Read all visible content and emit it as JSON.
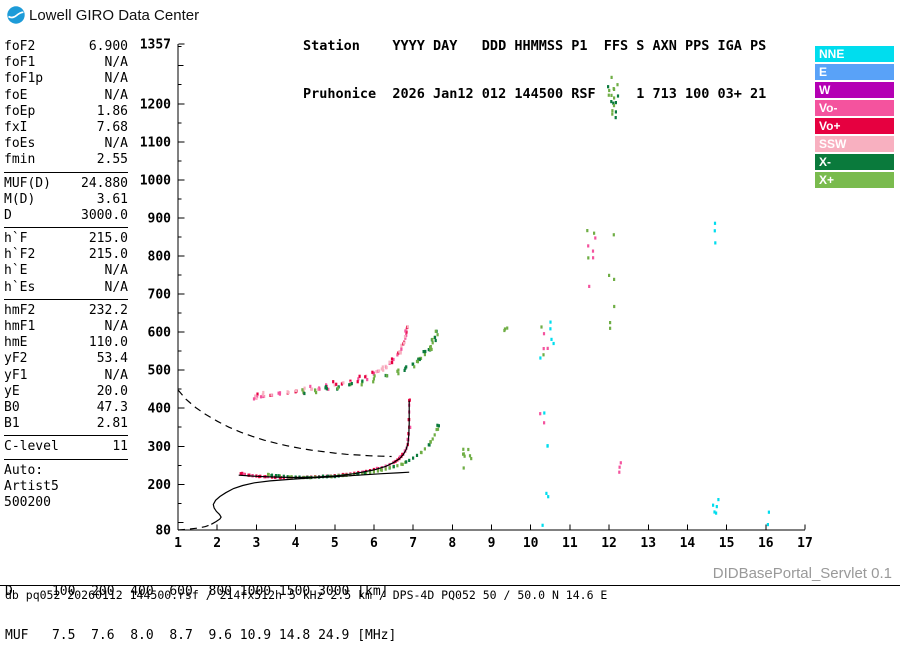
{
  "header": {
    "brand": "Lowell GIRO Data Center",
    "station_line1": "Station    YYYY DAY   DDD HHMMSS P1  FFS S AXN PPS IGA PS",
    "station_line2": "Pruhonice  2026 Jan12 012 144500 RSF     1 713 100 03+ 21"
  },
  "params": {
    "groups": [
      {
        "rows": [
          [
            "foF2",
            "6.900"
          ],
          [
            "foF1",
            "N/A"
          ],
          [
            "foF1p",
            "N/A"
          ],
          [
            "foE",
            "N/A"
          ],
          [
            "foEp",
            "1.86"
          ],
          [
            "fxI",
            "7.68"
          ],
          [
            "foEs",
            "N/A"
          ],
          [
            "fmin",
            "2.55"
          ]
        ]
      },
      {
        "rows": [
          [
            "MUF(D)",
            "24.880"
          ],
          [
            "M(D)",
            "3.61"
          ],
          [
            "D",
            "3000.0"
          ]
        ]
      },
      {
        "rows": [
          [
            "h`F",
            "215.0"
          ],
          [
            "h`F2",
            "215.0"
          ],
          [
            "h`E",
            "N/A"
          ],
          [
            "h`Es",
            "N/A"
          ]
        ]
      },
      {
        "rows": [
          [
            "hmF2",
            "232.2"
          ],
          [
            "hmF1",
            "N/A"
          ],
          [
            "hmE",
            "110.0"
          ],
          [
            "yF2",
            "53.4"
          ],
          [
            "yF1",
            "N/A"
          ],
          [
            "yE",
            "20.0"
          ],
          [
            "B0",
            "47.3"
          ],
          [
            "B1",
            "2.81"
          ]
        ]
      },
      {
        "rows": [
          [
            "C-level",
            "11"
          ]
        ]
      }
    ],
    "auto": {
      "lines": [
        "Auto:",
        "Artist5",
        "500200"
      ]
    }
  },
  "legend": [
    {
      "key": "nne",
      "label": "NNE",
      "color": "#00DDEE"
    },
    {
      "key": "e",
      "label": "E",
      "color": "#59A2F8"
    },
    {
      "key": "w",
      "label": "W",
      "color": "#B400B4"
    },
    {
      "key": "vo-minus",
      "label": "Vo-",
      "color": "#F4539E"
    },
    {
      "key": "vo-plus",
      "label": "Vo+",
      "color": "#E60040"
    },
    {
      "key": "ssw",
      "label": "SSW",
      "color": "#F8B0C0"
    },
    {
      "key": "x-minus",
      "label": "X-",
      "color": "#0A7A3C"
    },
    {
      "key": "x-plus",
      "label": "X+",
      "color": "#7ABB4E"
    }
  ],
  "muf_table": {
    "line1": "D     100  200  400  600  800 1000 1500 3000 [km]",
    "line2": "MUF   7.5  7.6  8.0  8.7  9.6 10.9 14.8 24.9 [MHz]"
  },
  "footer": {
    "servlet": "DIDBasePortal_Servlet 0.1",
    "info": "db pq052 20260112 144500.rsf / 214fx512h 5 kHz 2.5 km / DPS-4D PQ052 50 / 50.0 N 14.6 E"
  },
  "chart_data": {
    "type": "scatter",
    "xlabel": "[MHz]",
    "ylabel": "[km]",
    "x_range": [
      1,
      17
    ],
    "y_range": [
      80,
      1357
    ],
    "x_ticks": [
      1,
      2,
      3,
      4,
      5,
      6,
      7,
      8,
      9,
      10,
      11,
      12,
      13,
      14,
      15,
      16,
      17
    ],
    "y_ticks": [
      1357,
      1200,
      1100,
      1000,
      900,
      800,
      700,
      600,
      500,
      400,
      300,
      200,
      80
    ],
    "grid": false,
    "legend_position": "right",
    "seed": 7,
    "palette": {
      "voplus": "#E60040",
      "vominus": "#F4539E",
      "ssw": "#F8B0C0",
      "xplus": "#6FAE45",
      "xminus": "#0A7A3C",
      "cyan": "#00DDEE",
      "e": "#59A2F8",
      "w": "#B400B4"
    },
    "series": [
      {
        "name": "f2-o-trace",
        "colors": [
          "voplus",
          "voplus",
          "vominus"
        ],
        "spread": 1.5,
        "points": [
          [
            2.6,
            228
          ],
          [
            2.7,
            226
          ],
          [
            2.8,
            224
          ],
          [
            2.9,
            223
          ],
          [
            3.0,
            222
          ],
          [
            3.1,
            221
          ],
          [
            3.2,
            220
          ],
          [
            3.3,
            220
          ],
          [
            3.4,
            219
          ],
          [
            3.5,
            219
          ],
          [
            3.6,
            218
          ],
          [
            3.7,
            218
          ],
          [
            3.8,
            218
          ],
          [
            3.9,
            218
          ],
          [
            4.0,
            218
          ],
          [
            4.1,
            218
          ],
          [
            4.2,
            218
          ],
          [
            4.3,
            219
          ],
          [
            4.4,
            219
          ],
          [
            4.5,
            220
          ],
          [
            4.6,
            220
          ],
          [
            4.7,
            221
          ],
          [
            4.8,
            222
          ],
          [
            4.9,
            222
          ],
          [
            5.0,
            223
          ],
          [
            5.1,
            224
          ],
          [
            5.2,
            225
          ],
          [
            5.3,
            226
          ],
          [
            5.4,
            228
          ],
          [
            5.5,
            229
          ],
          [
            5.6,
            231
          ],
          [
            5.7,
            232
          ],
          [
            5.8,
            234
          ],
          [
            5.9,
            236
          ],
          [
            6.0,
            239
          ],
          [
            6.1,
            241
          ],
          [
            6.2,
            244
          ],
          [
            6.3,
            248
          ],
          [
            6.4,
            252
          ],
          [
            6.5,
            257
          ],
          [
            6.55,
            260
          ],
          [
            6.6,
            264
          ],
          [
            6.65,
            268
          ],
          [
            6.7,
            273
          ],
          [
            6.75,
            279
          ],
          [
            6.8,
            287
          ],
          [
            6.83,
            295
          ],
          [
            6.86,
            305
          ],
          [
            6.88,
            317
          ],
          [
            6.89,
            332
          ],
          [
            6.9,
            350
          ],
          [
            6.9,
            370
          ],
          [
            6.9,
            390
          ],
          [
            6.9,
            408
          ],
          [
            6.9,
            420
          ]
        ]
      },
      {
        "name": "f2-x-trace",
        "colors": [
          "xplus",
          "xplus",
          "xminus"
        ],
        "spread": 1.5,
        "points": [
          [
            3.3,
            226
          ],
          [
            3.4,
            224
          ],
          [
            3.5,
            223
          ],
          [
            3.6,
            222
          ],
          [
            3.7,
            221
          ],
          [
            3.8,
            220
          ],
          [
            3.9,
            220
          ],
          [
            4.0,
            219
          ],
          [
            4.1,
            219
          ],
          [
            4.2,
            218
          ],
          [
            4.3,
            218
          ],
          [
            4.4,
            218
          ],
          [
            4.5,
            219
          ],
          [
            4.6,
            219
          ],
          [
            4.7,
            220
          ],
          [
            4.8,
            220
          ],
          [
            4.9,
            221
          ],
          [
            5.0,
            221
          ],
          [
            5.1,
            222
          ],
          [
            5.2,
            223
          ],
          [
            5.3,
            224
          ],
          [
            5.4,
            225
          ],
          [
            5.5,
            226
          ],
          [
            5.6,
            227
          ],
          [
            5.7,
            228
          ],
          [
            5.8,
            230
          ],
          [
            5.9,
            231
          ],
          [
            6.0,
            233
          ],
          [
            6.1,
            235
          ],
          [
            6.2,
            237
          ],
          [
            6.3,
            240
          ],
          [
            6.4,
            243
          ],
          [
            6.5,
            246
          ],
          [
            6.6,
            249
          ],
          [
            6.7,
            253
          ],
          [
            6.8,
            258
          ],
          [
            6.9,
            263
          ],
          [
            7.0,
            269
          ],
          [
            7.1,
            276
          ],
          [
            7.2,
            284
          ],
          [
            7.3,
            293
          ],
          [
            7.4,
            304
          ],
          [
            7.45,
            311
          ],
          [
            7.5,
            319
          ],
          [
            7.55,
            330
          ],
          [
            7.6,
            344
          ],
          [
            7.62,
            355
          ]
        ]
      },
      {
        "name": "second-hop-o",
        "colors": [
          "vominus",
          "voplus",
          "ssw"
        ],
        "spread": 9,
        "points": [
          [
            3.0,
            428
          ],
          [
            3.2,
            431
          ],
          [
            3.4,
            434
          ],
          [
            3.6,
            437
          ],
          [
            3.8,
            440
          ],
          [
            4.0,
            443
          ],
          [
            4.2,
            446
          ],
          [
            4.4,
            450
          ],
          [
            4.6,
            453
          ],
          [
            4.8,
            457
          ],
          [
            5.0,
            461
          ],
          [
            5.2,
            466
          ],
          [
            5.4,
            471
          ],
          [
            5.6,
            477
          ],
          [
            5.8,
            484
          ],
          [
            6.0,
            492
          ],
          [
            6.1,
            497
          ],
          [
            6.2,
            503
          ],
          [
            6.3,
            510
          ],
          [
            6.4,
            518
          ],
          [
            6.5,
            528
          ],
          [
            6.6,
            540
          ],
          [
            6.65,
            548
          ],
          [
            6.7,
            557
          ],
          [
            6.75,
            569
          ],
          [
            6.8,
            584
          ],
          [
            6.83,
            600
          ],
          [
            6.85,
            612
          ]
        ]
      },
      {
        "name": "second-hop-x",
        "colors": [
          "xplus",
          "xminus"
        ],
        "spread": 9,
        "points": [
          [
            4.2,
            442
          ],
          [
            4.5,
            446
          ],
          [
            4.8,
            451
          ],
          [
            5.1,
            456
          ],
          [
            5.4,
            462
          ],
          [
            5.7,
            469
          ],
          [
            6.0,
            477
          ],
          [
            6.3,
            486
          ],
          [
            6.6,
            497
          ],
          [
            6.8,
            505
          ],
          [
            7.0,
            516
          ],
          [
            7.1,
            523
          ],
          [
            7.2,
            531
          ],
          [
            7.3,
            541
          ],
          [
            7.4,
            554
          ],
          [
            7.45,
            562
          ],
          [
            7.5,
            572
          ],
          [
            7.55,
            586
          ],
          [
            7.6,
            602
          ]
        ]
      }
    ],
    "noise_clusters": [
      {
        "f0": 10.2,
        "f1": 10.5,
        "h0": 90,
        "h1": 620,
        "n": 14,
        "colors": [
          "cyan",
          "xplus",
          "vominus"
        ]
      },
      {
        "f0": 10.5,
        "f1": 10.65,
        "h0": 560,
        "h1": 650,
        "n": 4,
        "colors": [
          "cyan"
        ]
      },
      {
        "f0": 11.4,
        "f1": 11.65,
        "h0": 720,
        "h1": 880,
        "n": 8,
        "colors": [
          "xplus",
          "vominus"
        ]
      },
      {
        "f0": 11.95,
        "f1": 12.25,
        "h0": 1160,
        "h1": 1270,
        "n": 18,
        "colors": [
          "xplus",
          "xminus"
        ]
      },
      {
        "f0": 12.0,
        "f1": 12.2,
        "h0": 590,
        "h1": 860,
        "n": 6,
        "colors": [
          "xplus"
        ]
      },
      {
        "f0": 12.15,
        "f1": 12.3,
        "h0": 230,
        "h1": 265,
        "n": 3,
        "colors": [
          "vominus"
        ]
      },
      {
        "f0": 14.6,
        "f1": 14.8,
        "h0": 90,
        "h1": 170,
        "n": 5,
        "colors": [
          "cyan"
        ]
      },
      {
        "f0": 14.62,
        "f1": 14.78,
        "h0": 830,
        "h1": 890,
        "n": 3,
        "colors": [
          "cyan"
        ]
      },
      {
        "f0": 8.1,
        "f1": 8.5,
        "h0": 230,
        "h1": 310,
        "n": 8,
        "colors": [
          "xplus"
        ]
      },
      {
        "f0": 2.9,
        "f1": 3.3,
        "h0": 412,
        "h1": 445,
        "n": 6,
        "colors": [
          "vominus",
          "ssw"
        ]
      },
      {
        "f0": 9.2,
        "f1": 9.45,
        "h0": 595,
        "h1": 645,
        "n": 3,
        "colors": [
          "xplus"
        ]
      },
      {
        "f0": 15.9,
        "f1": 16.1,
        "h0": 90,
        "h1": 130,
        "n": 2,
        "colors": [
          "cyan"
        ]
      }
    ],
    "lines": [
      {
        "name": "artist-o-fit",
        "style": "solid",
        "points": [
          [
            2.55,
            224
          ],
          [
            3.0,
            221
          ],
          [
            3.5,
            219
          ],
          [
            4.0,
            218
          ],
          [
            4.5,
            219
          ],
          [
            5.0,
            222
          ],
          [
            5.5,
            228
          ],
          [
            6.0,
            238
          ],
          [
            6.3,
            247
          ],
          [
            6.5,
            257
          ],
          [
            6.65,
            267
          ],
          [
            6.75,
            278
          ],
          [
            6.82,
            291
          ],
          [
            6.87,
            308
          ],
          [
            6.89,
            330
          ],
          [
            6.9,
            360
          ],
          [
            6.9,
            420
          ]
        ]
      },
      {
        "name": "true-height-profile",
        "style": "solid",
        "points": [
          [
            1.85,
            95
          ],
          [
            1.97,
            102
          ],
          [
            2.07,
            109
          ],
          [
            2.1,
            114
          ],
          [
            2.06,
            121
          ],
          [
            1.98,
            129
          ],
          [
            1.92,
            138
          ],
          [
            1.9,
            147
          ],
          [
            1.96,
            158
          ],
          [
            2.07,
            168
          ],
          [
            2.22,
            178
          ],
          [
            2.42,
            189
          ],
          [
            2.65,
            197
          ],
          [
            2.95,
            204
          ],
          [
            3.35,
            209
          ],
          [
            3.85,
            213
          ],
          [
            4.4,
            217
          ],
          [
            5.0,
            220
          ],
          [
            5.6,
            224
          ],
          [
            6.2,
            228
          ],
          [
            6.6,
            230
          ],
          [
            6.9,
            232
          ]
        ]
      },
      {
        "name": "profile-below-fmin",
        "style": "dashed",
        "points": [
          [
            1.0,
            80
          ],
          [
            1.25,
            82
          ],
          [
            1.5,
            85
          ],
          [
            1.7,
            89
          ],
          [
            1.85,
            95
          ]
        ]
      },
      {
        "name": "muf-transmission-curve",
        "style": "dashed",
        "points": [
          [
            1.0,
            448
          ],
          [
            1.2,
            424
          ],
          [
            1.45,
            402
          ],
          [
            1.7,
            384
          ],
          [
            2.0,
            366
          ],
          [
            2.3,
            350
          ],
          [
            2.6,
            337
          ],
          [
            2.9,
            326
          ],
          [
            3.2,
            316
          ],
          [
            3.5,
            308
          ],
          [
            3.8,
            301
          ],
          [
            4.1,
            295
          ],
          [
            4.4,
            290
          ],
          [
            4.7,
            286
          ],
          [
            5.0,
            282
          ],
          [
            5.3,
            279
          ],
          [
            5.6,
            277
          ],
          [
            5.9,
            275
          ],
          [
            6.2,
            274
          ],
          [
            6.45,
            273
          ]
        ]
      }
    ]
  }
}
